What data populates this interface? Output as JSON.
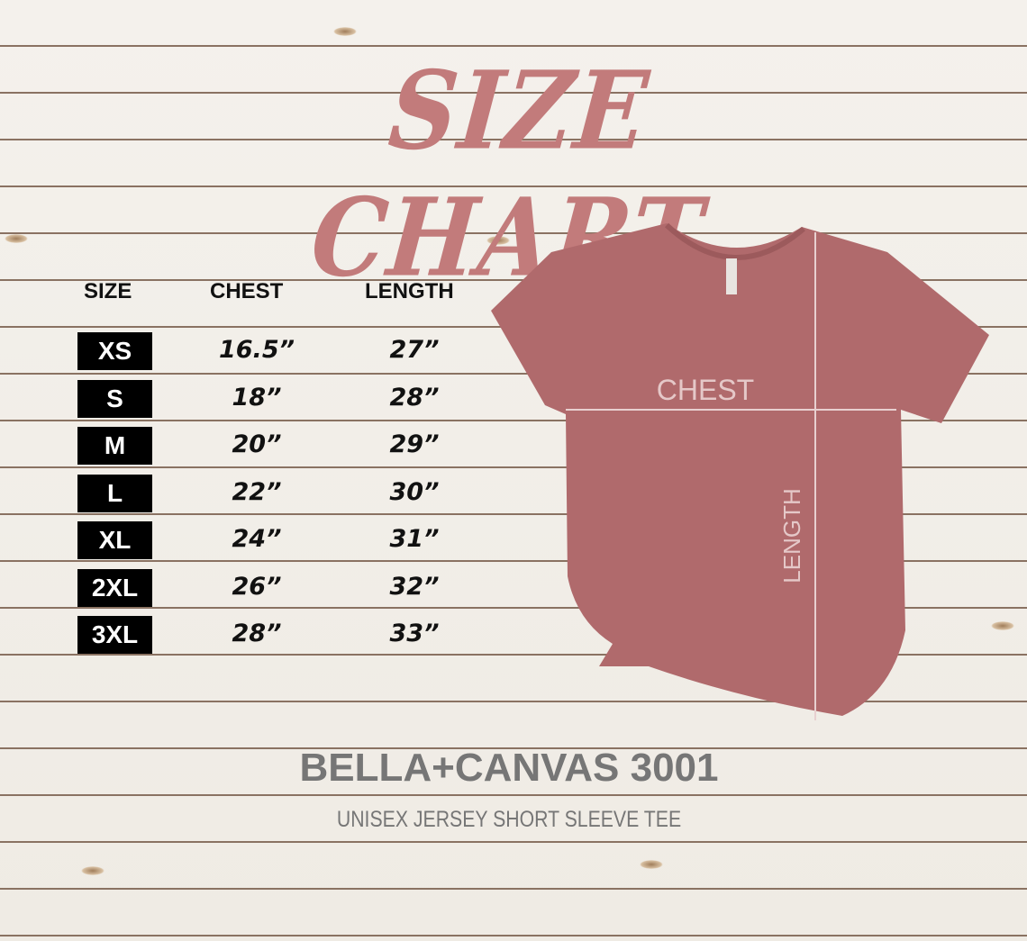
{
  "title": "SIZE CHART",
  "table": {
    "headers": [
      "SIZE",
      "CHEST",
      "LENGTH"
    ],
    "rows": [
      {
        "size": "XS",
        "chest": "16.5”",
        "length": "27”"
      },
      {
        "size": "S",
        "chest": "18”",
        "length": "28”"
      },
      {
        "size": "M",
        "chest": "20”",
        "length": "29”"
      },
      {
        "size": "L",
        "chest": "22”",
        "length": "30”"
      },
      {
        "size": "XL",
        "chest": "24”",
        "length": "31”"
      },
      {
        "size": "2XL",
        "chest": "26”",
        "length": "32”"
      },
      {
        "size": "3XL",
        "chest": "28”",
        "length": "33”"
      }
    ]
  },
  "shirt": {
    "chest_label": "CHEST",
    "length_label": "LENGTH",
    "color": "#b06a6c"
  },
  "brand": "BELLA+CANVAS 3001",
  "subtitle": "UNISEX JERSEY SHORT SLEEVE TEE",
  "colors": {
    "title": "#c27b7b",
    "brand": "#767676"
  }
}
